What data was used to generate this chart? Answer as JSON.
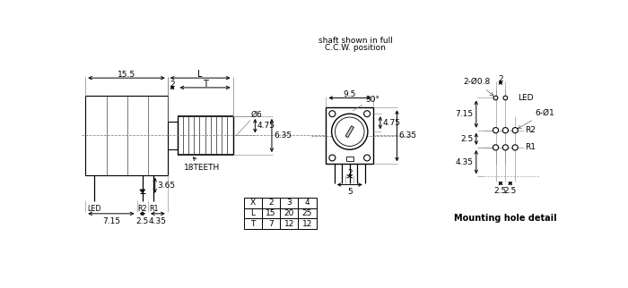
{
  "bg_color": "#ffffff",
  "line_color": "#000000",
  "table_data": [
    [
      "X",
      "2",
      "3",
      "4"
    ],
    [
      "L",
      "15",
      "20",
      "25"
    ],
    [
      "T",
      "7",
      "12",
      "12"
    ]
  ],
  "shaft_text1": "shaft shown in full",
  "shaft_text2": "C.C.W. position",
  "mounting_text": "Mounting hole detail",
  "dim_155": "15.5",
  "dim_L": "L",
  "dim_2": "2",
  "dim_T": "T",
  "dim_phi6": "Ø6",
  "dim_475": "4.75",
  "dim_635": "6.35",
  "dim_365": "3.65",
  "dim_715": "7.15",
  "dim_25": "2.5",
  "dim_435": "4.35",
  "dim_18teeth": "18TEETH",
  "dim_95": "9.5",
  "dim_2f": "2",
  "dim_5": "5",
  "dim_30": "30°",
  "dim_2mh": "2",
  "dim_2phi08": "2-Ø0.8",
  "dim_6phi1": "6-Ø1",
  "dim_715mh": "7.15",
  "dim_25mh": "2.5",
  "dim_435mh": "4.35",
  "dim_25a": "2.5",
  "dim_25b": "2.5",
  "led_label": "LED",
  "r2_label": "R2",
  "r1_label": "R1"
}
